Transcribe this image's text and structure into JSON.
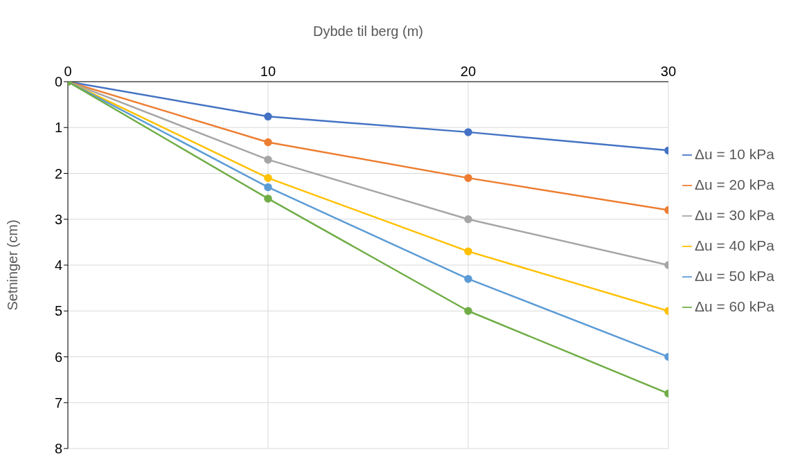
{
  "chart_data": {
    "type": "line",
    "xlabel": "Dybde til berg (m)",
    "ylabel": "Setninger (cm)",
    "x": [
      0,
      10,
      20,
      30
    ],
    "series": [
      {
        "name": "Δu = 10 kPa",
        "color": "#4472c4",
        "values": [
          0,
          0.76,
          1.1,
          1.5
        ]
      },
      {
        "name": "Δu = 20 kPa",
        "color": "#ed7d31",
        "values": [
          0,
          1.32,
          2.1,
          2.8
        ]
      },
      {
        "name": "Δu = 30 kPa",
        "color": "#a5a5a5",
        "values": [
          0,
          1.7,
          3.0,
          4.0
        ]
      },
      {
        "name": "Δu = 40 kPa",
        "color": "#ffc000",
        "values": [
          0,
          2.1,
          3.7,
          5.0
        ]
      },
      {
        "name": "Δu = 50 kPa",
        "color": "#5b9bd5",
        "values": [
          0,
          2.3,
          4.3,
          6.0
        ]
      },
      {
        "name": "Δu = 60 kPa",
        "color": "#70ad47",
        "values": [
          0,
          2.55,
          5.0,
          6.8
        ]
      }
    ],
    "xlim": [
      0,
      30
    ],
    "xticks": [
      0,
      10,
      20,
      30
    ],
    "ylim": [
      8,
      0
    ],
    "yticks": [
      0,
      1,
      2,
      3,
      4,
      5,
      6,
      7,
      8
    ],
    "grid": true,
    "legend": "right",
    "marker": "circle",
    "line_style": "solid"
  }
}
